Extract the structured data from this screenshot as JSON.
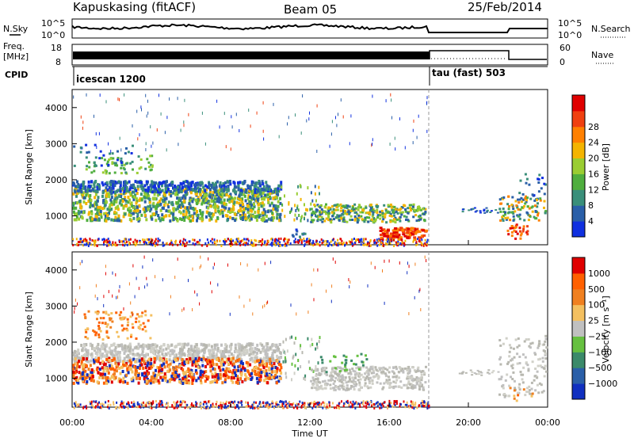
{
  "header": {
    "station": "Kapuskasing (fitACF)",
    "beam": "Beam 05",
    "date": "25/Feb/2014"
  },
  "side_labels": {
    "nsky": "N.Sky",
    "nsearch": "N.Search",
    "freq_line1": "Freq.",
    "freq_line2": "[MHz]",
    "nave": "Nave",
    "cpid": "CPID"
  },
  "top_panels": {
    "nsky_ticks": [
      "10^5",
      "10^0"
    ],
    "nsearch_ticks": [
      "10^5",
      "10^0"
    ],
    "freq_ticks": [
      "18",
      "8"
    ],
    "nave_ticks": [
      "60",
      "0"
    ]
  },
  "cpid_labels": [
    {
      "text": "icescan 1200",
      "time": 0
    },
    {
      "text": "tau (fast) 503",
      "time": 18
    }
  ],
  "chart_data": [
    {
      "type": "heatmap",
      "name": "power",
      "ylabel": "Slant Range [km]",
      "xlabel": "Time UT",
      "ylim": [
        200,
        4500
      ],
      "yticks": [
        1000,
        2000,
        3000,
        4000
      ],
      "xticks": [
        "00:00",
        "04:00",
        "08:00",
        "12:00",
        "16:00",
        "20:00",
        "00:00"
      ],
      "colorbar": {
        "label": "Power [dB]",
        "ticks": [
          "4",
          "8",
          "12",
          "16",
          "20",
          "24",
          "28"
        ],
        "colors": [
          "#1030e0",
          "#2a5fa8",
          "#3a8f7a",
          "#4fae3e",
          "#9acd32",
          "#f4b400",
          "#ff8000",
          "#f04010",
          "#e00000"
        ]
      }
    },
    {
      "type": "heatmap",
      "name": "velocity",
      "ylabel": "Slant Range [km]",
      "xlabel": "Time UT",
      "ylim": [
        200,
        4500
      ],
      "yticks": [
        1000,
        2000,
        3000,
        4000
      ],
      "xticks": [
        "00:00",
        "04:00",
        "08:00",
        "12:00",
        "16:00",
        "20:00",
        "00:00"
      ],
      "colorbar": {
        "label": "Velocity [m s⁻¹]",
        "ticks": [
          "1000",
          "500",
          "100",
          "25",
          "−25",
          "−100",
          "−500",
          "−1000"
        ],
        "colors": [
          "#1030c0",
          "#2a5fa8",
          "#3b8a6a",
          "#66c040",
          "#c0c0c0",
          "#f4c060",
          "#f08020",
          "#ff6000",
          "#e00000"
        ]
      }
    }
  ]
}
